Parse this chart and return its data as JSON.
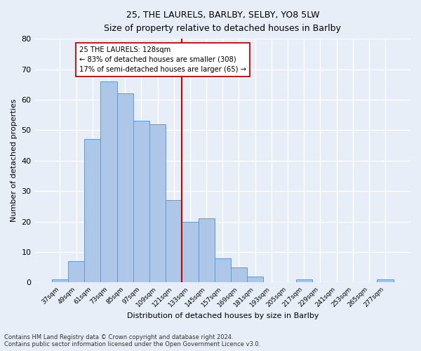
{
  "title": "25, THE LAURELS, BARLBY, SELBY, YO8 5LW",
  "subtitle": "Size of property relative to detached houses in Barlby",
  "xlabel": "Distribution of detached houses by size in Barlby",
  "ylabel": "Number of detached properties",
  "footnote": "Contains HM Land Registry data © Crown copyright and database right 2024.\nContains public sector information licensed under the Open Government Licence v3.0.",
  "bar_labels": [
    "37sqm",
    "49sqm",
    "61sqm",
    "73sqm",
    "85sqm",
    "97sqm",
    "109sqm",
    "121sqm",
    "133sqm",
    "145sqm",
    "157sqm",
    "169sqm",
    "181sqm",
    "193sqm",
    "205sqm",
    "217sqm",
    "229sqm",
    "241sqm",
    "253sqm",
    "265sqm",
    "277sqm"
  ],
  "bar_values": [
    1,
    7,
    47,
    66,
    62,
    53,
    52,
    27,
    20,
    21,
    8,
    5,
    2,
    0,
    0,
    1,
    0,
    0,
    0,
    0,
    1
  ],
  "bar_color": "#aec6e8",
  "bar_edgecolor": "#5b9bd5",
  "annotation_label": "25 THE LAURELS: 128sqm",
  "annotation_line_label1": "← 83% of detached houses are smaller (308)",
  "annotation_line_label2": "17% of semi-detached houses are larger (65) →",
  "vline_color": "#cc0000",
  "annotation_box_edgecolor": "#cc0000",
  "background_color": "#e8eef7",
  "grid_color": "#ffffff",
  "ylim": [
    0,
    80
  ],
  "yticks": [
    0,
    10,
    20,
    30,
    40,
    50,
    60,
    70,
    80
  ]
}
